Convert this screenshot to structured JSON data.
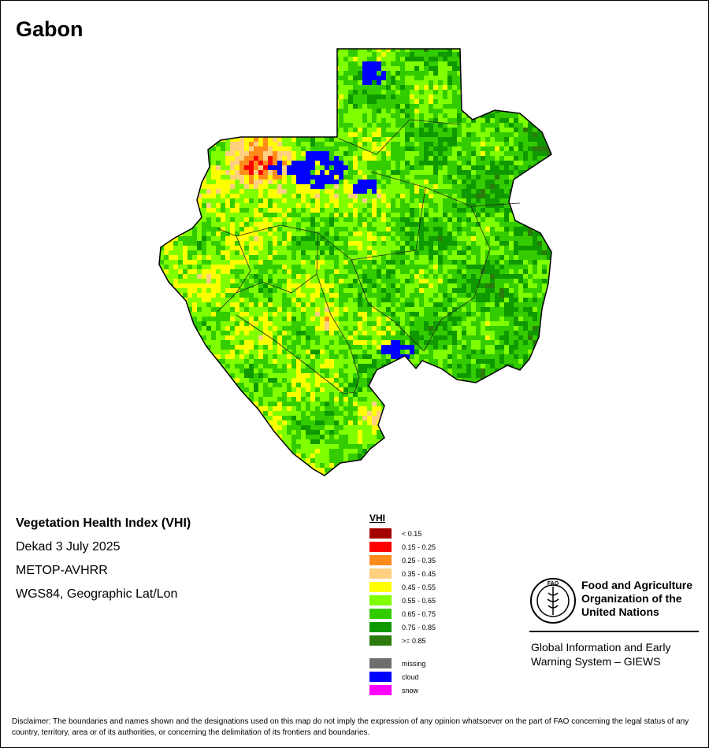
{
  "map": {
    "title": "Gabon",
    "product": "Vegetation Health Index (VHI)",
    "period": "Dekad 3 July 2025",
    "sensor": "METOP-AVHRR",
    "projection": "WGS84, Geographic Lat/Lon"
  },
  "legend": {
    "title": "VHI",
    "classes": [
      {
        "label": "< 0.15",
        "color": "#a50000"
      },
      {
        "label": "0.15 - 0.25",
        "color": "#ff0000"
      },
      {
        "label": "0.25 - 0.35",
        "color": "#ff8c1a"
      },
      {
        "label": "0.35 - 0.45",
        "color": "#ffd080"
      },
      {
        "label": "0.45 - 0.55",
        "color": "#ffff00"
      },
      {
        "label": "0.55 - 0.65",
        "color": "#80ff00"
      },
      {
        "label": "0.65 - 0.75",
        "color": "#33cc00"
      },
      {
        "label": "0.75 - 0.85",
        "color": "#0f9900"
      },
      {
        "label": ">= 0.85",
        "color": "#2b7a0b"
      }
    ],
    "other": [
      {
        "label": "missing",
        "color": "#6e6e6e"
      },
      {
        "label": "cloud",
        "color": "#0000ff"
      },
      {
        "label": "snow",
        "color": "#ff00ff"
      }
    ]
  },
  "organization": {
    "name_line1": "Food and Agriculture",
    "name_line2": "Organization of the",
    "name_line3": "United Nations",
    "logo_text": "FAO",
    "logo_motto": "FIAT PANIS",
    "system_line1": "Global Information and Early",
    "system_line2": "Warning System – GIEWS"
  },
  "disclaimer": "Disclaimer: The boundaries and names shown and the designations used on this map do not imply the expression of any opinion whatsoever on the part of FAO concerning the legal status of any country, territory, area or of its authorities, or concerning the delimitation of its frontiers and boundaries."
}
